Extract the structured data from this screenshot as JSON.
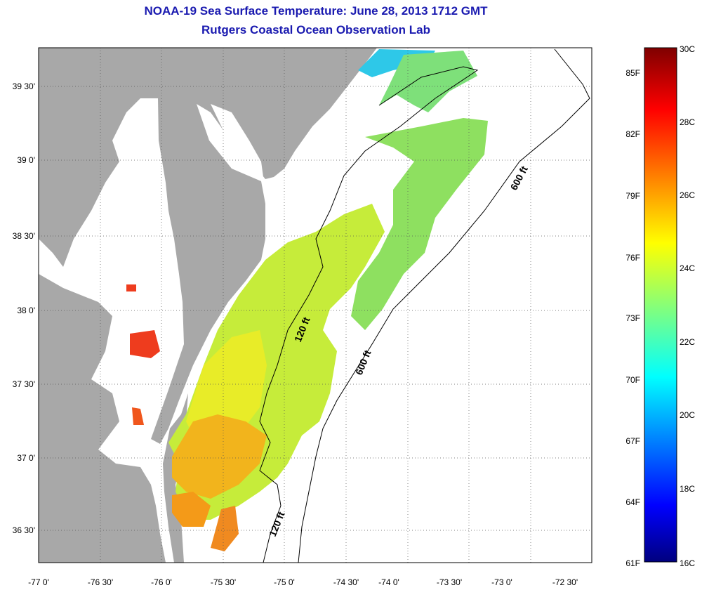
{
  "header": {
    "title": "NOAA-19 Sea Surface Temperature:  June 28, 2013 1712 GMT",
    "subtitle": "Rutgers Coastal Ocean Observation Lab"
  },
  "map": {
    "lat_labels": [
      "39 30'",
      "39 0'",
      "38 30'",
      "38 0'",
      "37 30'",
      "37 0'",
      "36 30'"
    ],
    "lon_labels": [
      "-77 0'",
      "-76 30'",
      "-76 0'",
      "-75 30'",
      "-75 0'",
      "-74 30'",
      "-74 0'",
      "-73 30'",
      "-73 0'",
      "-72 30'"
    ],
    "contour_labels": [
      "120 ft",
      "600 ft",
      "600 ft",
      "120 ft"
    ],
    "colors": {
      "land": "#a8a8a8",
      "no_data": "#ffffff",
      "grid": "#555555"
    }
  },
  "colorbar": {
    "fahrenheit_labels": [
      "85F",
      "82F",
      "79F",
      "76F",
      "73F",
      "70F",
      "67F",
      "64F",
      "61F"
    ],
    "celsius_labels": [
      "30C",
      "28C",
      "26C",
      "24C",
      "22C",
      "20C",
      "18C",
      "16C"
    ],
    "range_c": [
      16,
      30
    ]
  }
}
